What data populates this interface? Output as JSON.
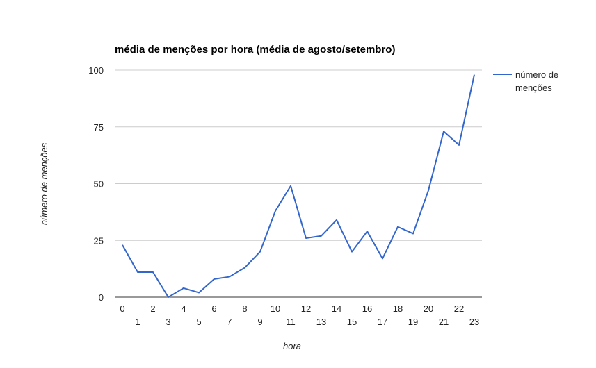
{
  "chart_data": {
    "type": "line",
    "title": "média de menções por hora (média de agosto/setembro)",
    "xlabel": "hora",
    "ylabel": "número de menções",
    "x": [
      0,
      1,
      2,
      3,
      4,
      5,
      6,
      7,
      8,
      9,
      10,
      11,
      12,
      13,
      14,
      15,
      16,
      17,
      18,
      19,
      20,
      21,
      22,
      23
    ],
    "x_tick_labels": [
      "0",
      "1",
      "2",
      "3",
      "4",
      "5",
      "6",
      "7",
      "8",
      "9",
      "10",
      "11",
      "12",
      "13",
      "14",
      "15",
      "16",
      "17",
      "18",
      "19",
      "20",
      "21",
      "22",
      "23"
    ],
    "y_ticks": [
      0,
      25,
      50,
      75,
      100
    ],
    "y_tick_labels": [
      "0",
      "25",
      "50",
      "75",
      "100"
    ],
    "ylim": [
      0,
      100
    ],
    "grid": true,
    "legend": "right",
    "series": [
      {
        "name": "número de menções",
        "legend_lines": [
          "número de",
          "menções"
        ],
        "color": "#3366cc",
        "values": [
          23,
          11,
          11,
          0,
          4,
          2,
          8,
          9,
          13,
          20,
          38,
          49,
          26,
          27,
          34,
          20,
          29,
          17,
          31,
          28,
          47,
          73,
          67,
          98
        ]
      }
    ]
  }
}
